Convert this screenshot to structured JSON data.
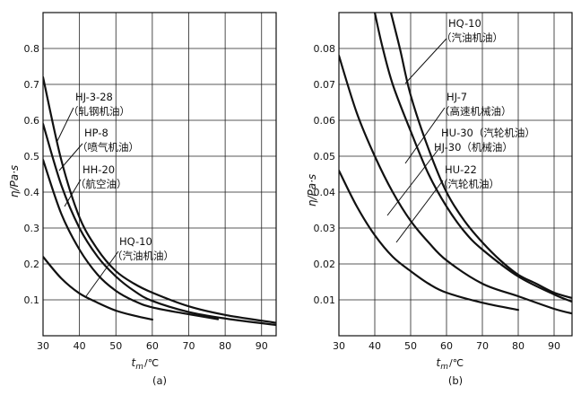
{
  "chart_data": [
    {
      "type": "line",
      "panel_label": "(a)",
      "xlabel": "t",
      "xlabel_sub": "m",
      "xlabel_unit": "/℃",
      "ylabel": "η/Pa·s",
      "xlim": [
        30,
        94
      ],
      "ylim": [
        0,
        0.9
      ],
      "xticks": [
        30,
        40,
        50,
        60,
        70,
        80,
        90
      ],
      "yticks": [
        0.1,
        0.2,
        0.3,
        0.4,
        0.5,
        0.6,
        0.7,
        0.8
      ],
      "grid": true,
      "series": [
        {
          "name": "HJ-3-28（轧钢机油）",
          "x": [
            30,
            35,
            40,
            45,
            50,
            55,
            60,
            70,
            80,
            94
          ],
          "y": [
            0.72,
            0.49,
            0.33,
            0.24,
            0.18,
            0.145,
            0.12,
            0.082,
            0.058,
            0.036
          ]
        },
        {
          "name": "HP-8（喷气机油）",
          "x": [
            30,
            35,
            40,
            45,
            50,
            55,
            60,
            70,
            80,
            94
          ],
          "y": [
            0.59,
            0.42,
            0.3,
            0.22,
            0.165,
            0.125,
            0.097,
            0.066,
            0.048,
            0.03
          ]
        },
        {
          "name": "HH-20（航空油）",
          "x": [
            30,
            35,
            40,
            45,
            50,
            55,
            60,
            70,
            78
          ],
          "y": [
            0.49,
            0.34,
            0.24,
            0.17,
            0.125,
            0.097,
            0.079,
            0.06,
            0.046
          ]
        },
        {
          "name": "HQ-10（汽油机油）",
          "x": [
            30,
            35,
            40,
            45,
            50,
            55,
            60
          ],
          "y": [
            0.22,
            0.16,
            0.118,
            0.092,
            0.07,
            0.056,
            0.045
          ]
        }
      ],
      "labels": [
        {
          "line1": "HJ-3-28",
          "line2": "（轧钢机油）"
        },
        {
          "line1": "HP-8",
          "line2": "（喷气机油）"
        },
        {
          "line1": "HH-20",
          "line2": "（航空油）"
        },
        {
          "line1": "HQ-10",
          "line2": "（汽油机油）"
        }
      ]
    },
    {
      "type": "line",
      "panel_label": "(b)",
      "xlabel": "t",
      "xlabel_sub": "m",
      "xlabel_unit": "/℃",
      "ylabel": "η/Pa·s",
      "xlim": [
        30,
        95
      ],
      "ylim": [
        0,
        0.09
      ],
      "xticks": [
        30,
        40,
        50,
        60,
        70,
        80,
        90
      ],
      "yticks": [
        0.01,
        0.02,
        0.03,
        0.04,
        0.05,
        0.06,
        0.07,
        0.08
      ],
      "grid": true,
      "series": [
        {
          "name": "HQ-10（汽油机油）",
          "x": [
            44.5,
            47,
            50,
            55,
            60,
            65,
            70,
            75,
            80,
            85,
            90,
            95
          ],
          "y": [
            0.09,
            0.08,
            0.067,
            0.052,
            0.04,
            0.032,
            0.026,
            0.021,
            0.017,
            0.0145,
            0.012,
            0.0105
          ]
        },
        {
          "name": "HJ-7（高速机械油）",
          "x": [
            40,
            42,
            45,
            50,
            55,
            60,
            65,
            70,
            80,
            90,
            95
          ],
          "y": [
            0.09,
            0.081,
            0.07,
            0.057,
            0.045,
            0.036,
            0.029,
            0.024,
            0.0165,
            0.0115,
            0.0095
          ]
        },
        {
          "name": "HU-30（汽轮机油）/ HJ-30（机械油）",
          "x": [
            30,
            35,
            40,
            45,
            50,
            55,
            60,
            70,
            80,
            90,
            95
          ],
          "y": [
            0.078,
            0.062,
            0.05,
            0.04,
            0.032,
            0.026,
            0.021,
            0.0145,
            0.011,
            0.0075,
            0.0062
          ]
        },
        {
          "name": "HU-22（汽轮机油）",
          "x": [
            30,
            35,
            40,
            45,
            50,
            55,
            60,
            70,
            80
          ],
          "y": [
            0.046,
            0.036,
            0.028,
            0.022,
            0.018,
            0.0145,
            0.012,
            0.0092,
            0.0072
          ]
        }
      ],
      "labels": [
        {
          "line1": "HQ-10",
          "line2": "（汽油机油）"
        },
        {
          "line1": "HJ-7",
          "line2": "（高速机械油）"
        },
        {
          "line1": "HU-30（汽轮机油）",
          "line2": "HJ-30（机械油）"
        },
        {
          "line1": "HU-22",
          "line2": "（汽轮机油）"
        }
      ]
    }
  ]
}
